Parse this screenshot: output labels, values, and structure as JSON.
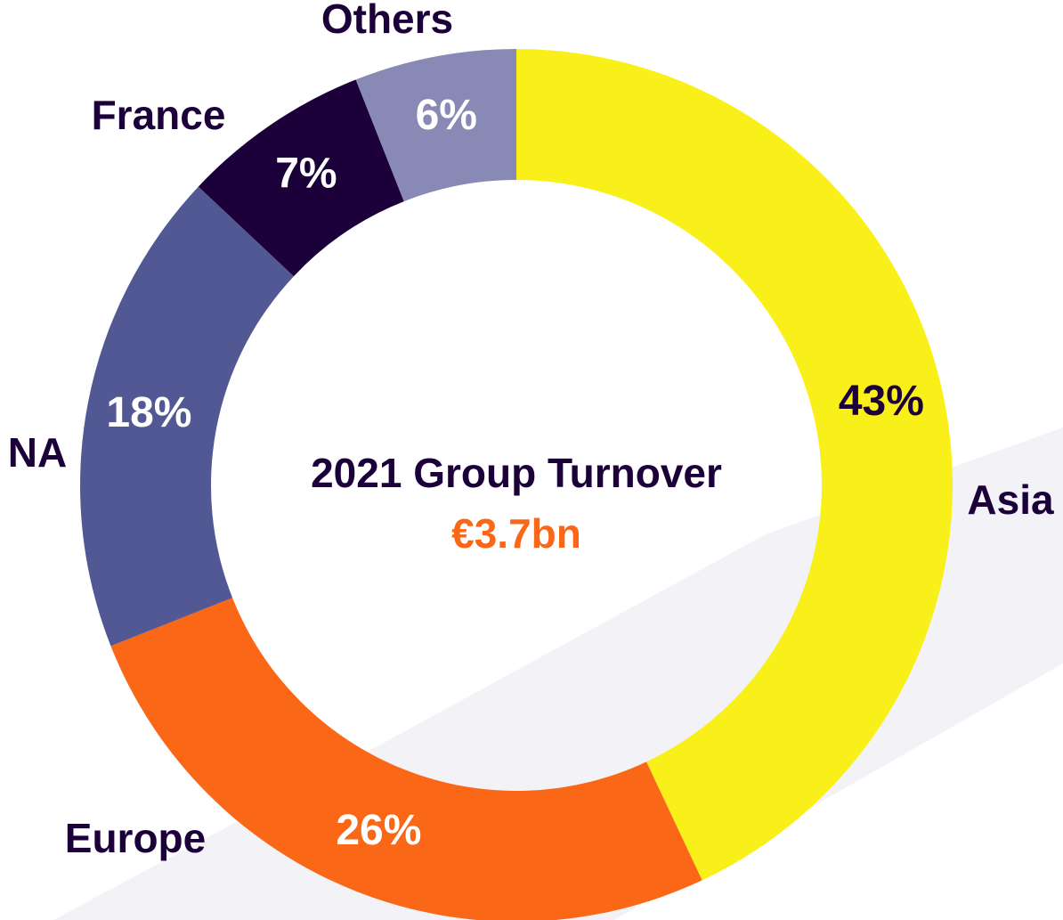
{
  "chart_data": {
    "type": "donut",
    "title": "2021 Group Turnover",
    "subtitle": "€3.7bn",
    "categories": [
      "Asia",
      "Europe",
      "NA",
      "France",
      "Others"
    ],
    "values": [
      43,
      26,
      18,
      7,
      6
    ],
    "value_labels": [
      "43%",
      "26%",
      "18%",
      "7%",
      "6%"
    ],
    "colors": [
      "#f9f01a",
      "#fa6717",
      "#525893",
      "#1b003a",
      "#8889b5"
    ]
  }
}
